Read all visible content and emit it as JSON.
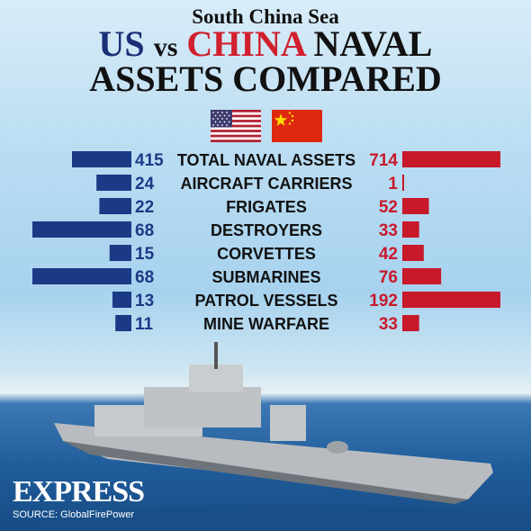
{
  "header": {
    "subtitle": "South China Sea",
    "title_us": "US",
    "title_vs": "vs",
    "title_china": "CHINA",
    "title_naval": "NAVAL",
    "title_line2": "ASSETS COMPARED"
  },
  "flags": {
    "us": "us-flag",
    "china": "china-flag"
  },
  "chart_data": {
    "type": "bar",
    "categories": [
      "TOTAL NAVAL ASSETS",
      "AIRCRAFT CARRIERS",
      "FRIGATES",
      "DESTROYERS",
      "CORVETTES",
      "SUBMARINES",
      "PATROL VESSELS",
      "MINE WARFARE"
    ],
    "series": [
      {
        "name": "US",
        "values": [
          415,
          24,
          22,
          68,
          15,
          68,
          13,
          11
        ],
        "color": "#1b3a86"
      },
      {
        "name": "CHINA",
        "values": [
          714,
          1,
          52,
          33,
          42,
          76,
          192,
          33
        ],
        "color": "#c8192b"
      }
    ]
  },
  "branding": {
    "logo": "EXPRESS",
    "source": "SOURCE: GlobalFirePower"
  },
  "colors": {
    "us_blue": "#1b3a86",
    "china_red": "#c8192b",
    "text": "#111111"
  }
}
